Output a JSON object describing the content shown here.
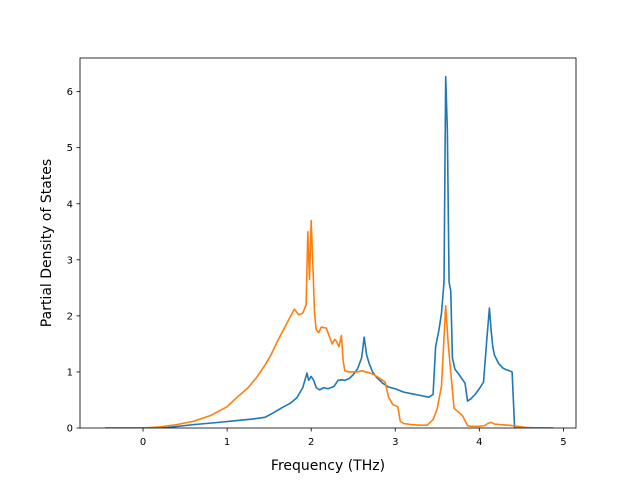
{
  "chart_data": {
    "type": "line",
    "title": "",
    "xlabel": "Frequency (THz)",
    "ylabel": "Partial Density of States",
    "xlim": [
      -0.75,
      5.15
    ],
    "ylim": [
      0,
      6.6
    ],
    "xticks": [
      0,
      1,
      2,
      3,
      4,
      5
    ],
    "yticks": [
      0,
      1,
      2,
      3,
      4,
      5,
      6
    ],
    "grid": false,
    "legend": "none",
    "series": [
      {
        "color": "#1f77b4",
        "x": [
          -0.45,
          0.0,
          0.3,
          0.6,
          0.9,
          1.1,
          1.3,
          1.45,
          1.55,
          1.65,
          1.75,
          1.83,
          1.9,
          1.95,
          1.97,
          2.0,
          2.03,
          2.06,
          2.1,
          2.15,
          2.2,
          2.27,
          2.32,
          2.36,
          2.4,
          2.45,
          2.5,
          2.55,
          2.6,
          2.63,
          2.66,
          2.69,
          2.73,
          2.78,
          2.85,
          2.92,
          3.0,
          3.1,
          3.2,
          3.3,
          3.4,
          3.45,
          3.48,
          3.52,
          3.55,
          3.58,
          3.6,
          3.62,
          3.64,
          3.66,
          3.68,
          3.71,
          3.76,
          3.83,
          3.86,
          3.9,
          3.95,
          4.0,
          4.05,
          4.09,
          4.12,
          4.14,
          4.16,
          4.18,
          4.23,
          4.28,
          4.32,
          4.36,
          4.39,
          4.42,
          4.5,
          4.7,
          4.88
        ],
        "y": [
          0,
          0,
          0.01,
          0.06,
          0.1,
          0.13,
          0.16,
          0.19,
          0.27,
          0.36,
          0.44,
          0.54,
          0.72,
          0.98,
          0.85,
          0.92,
          0.85,
          0.72,
          0.68,
          0.72,
          0.7,
          0.74,
          0.85,
          0.86,
          0.85,
          0.88,
          0.95,
          1.05,
          1.25,
          1.62,
          1.3,
          1.15,
          1.0,
          0.9,
          0.8,
          0.73,
          0.7,
          0.64,
          0.61,
          0.58,
          0.55,
          0.6,
          1.45,
          1.75,
          2.05,
          2.6,
          6.27,
          5.3,
          2.6,
          2.45,
          1.25,
          1.05,
          0.95,
          0.8,
          0.48,
          0.52,
          0.6,
          0.7,
          0.82,
          1.6,
          2.14,
          1.75,
          1.45,
          1.3,
          1.15,
          1.07,
          1.04,
          1.02,
          1.0,
          0.0,
          0,
          0,
          0
        ]
      },
      {
        "color": "#ff7f0e",
        "x": [
          -0.45,
          0.0,
          0.2,
          0.4,
          0.6,
          0.8,
          1.0,
          1.12,
          1.25,
          1.35,
          1.45,
          1.52,
          1.6,
          1.68,
          1.75,
          1.8,
          1.85,
          1.9,
          1.94,
          1.96,
          1.98,
          2.0,
          2.02,
          2.04,
          2.06,
          2.09,
          2.12,
          2.18,
          2.22,
          2.25,
          2.28,
          2.3,
          2.33,
          2.36,
          2.38,
          2.4,
          2.45,
          2.5,
          2.55,
          2.6,
          2.65,
          2.7,
          2.75,
          2.82,
          2.88,
          2.92,
          2.97,
          3.0,
          3.03,
          3.06,
          3.1,
          3.2,
          3.3,
          3.38,
          3.45,
          3.5,
          3.55,
          3.6,
          3.63,
          3.66,
          3.7,
          3.74,
          3.8,
          3.86,
          3.9,
          4.0,
          4.06,
          4.1,
          4.14,
          4.18,
          4.25,
          4.35,
          4.4,
          4.45,
          4.55,
          4.7,
          4.88
        ],
        "y": [
          0,
          0,
          0.02,
          0.06,
          0.12,
          0.22,
          0.38,
          0.55,
          0.72,
          0.9,
          1.12,
          1.3,
          1.55,
          1.78,
          1.98,
          2.12,
          2.02,
          2.05,
          2.2,
          3.5,
          2.65,
          3.7,
          2.9,
          2.05,
          1.75,
          1.7,
          1.8,
          1.78,
          1.62,
          1.5,
          1.58,
          1.55,
          1.45,
          1.65,
          1.2,
          1.02,
          1.0,
          1.0,
          1.0,
          1.02,
          1.0,
          0.98,
          0.95,
          0.88,
          0.82,
          0.55,
          0.42,
          0.4,
          0.38,
          0.12,
          0.08,
          0.06,
          0.05,
          0.05,
          0.15,
          0.35,
          0.75,
          2.18,
          1.5,
          1.0,
          0.35,
          0.3,
          0.22,
          0.04,
          0.03,
          0.03,
          0.04,
          0.08,
          0.1,
          0.07,
          0.06,
          0.05,
          0.04,
          0.03,
          0.01,
          0,
          0
        ]
      }
    ]
  }
}
